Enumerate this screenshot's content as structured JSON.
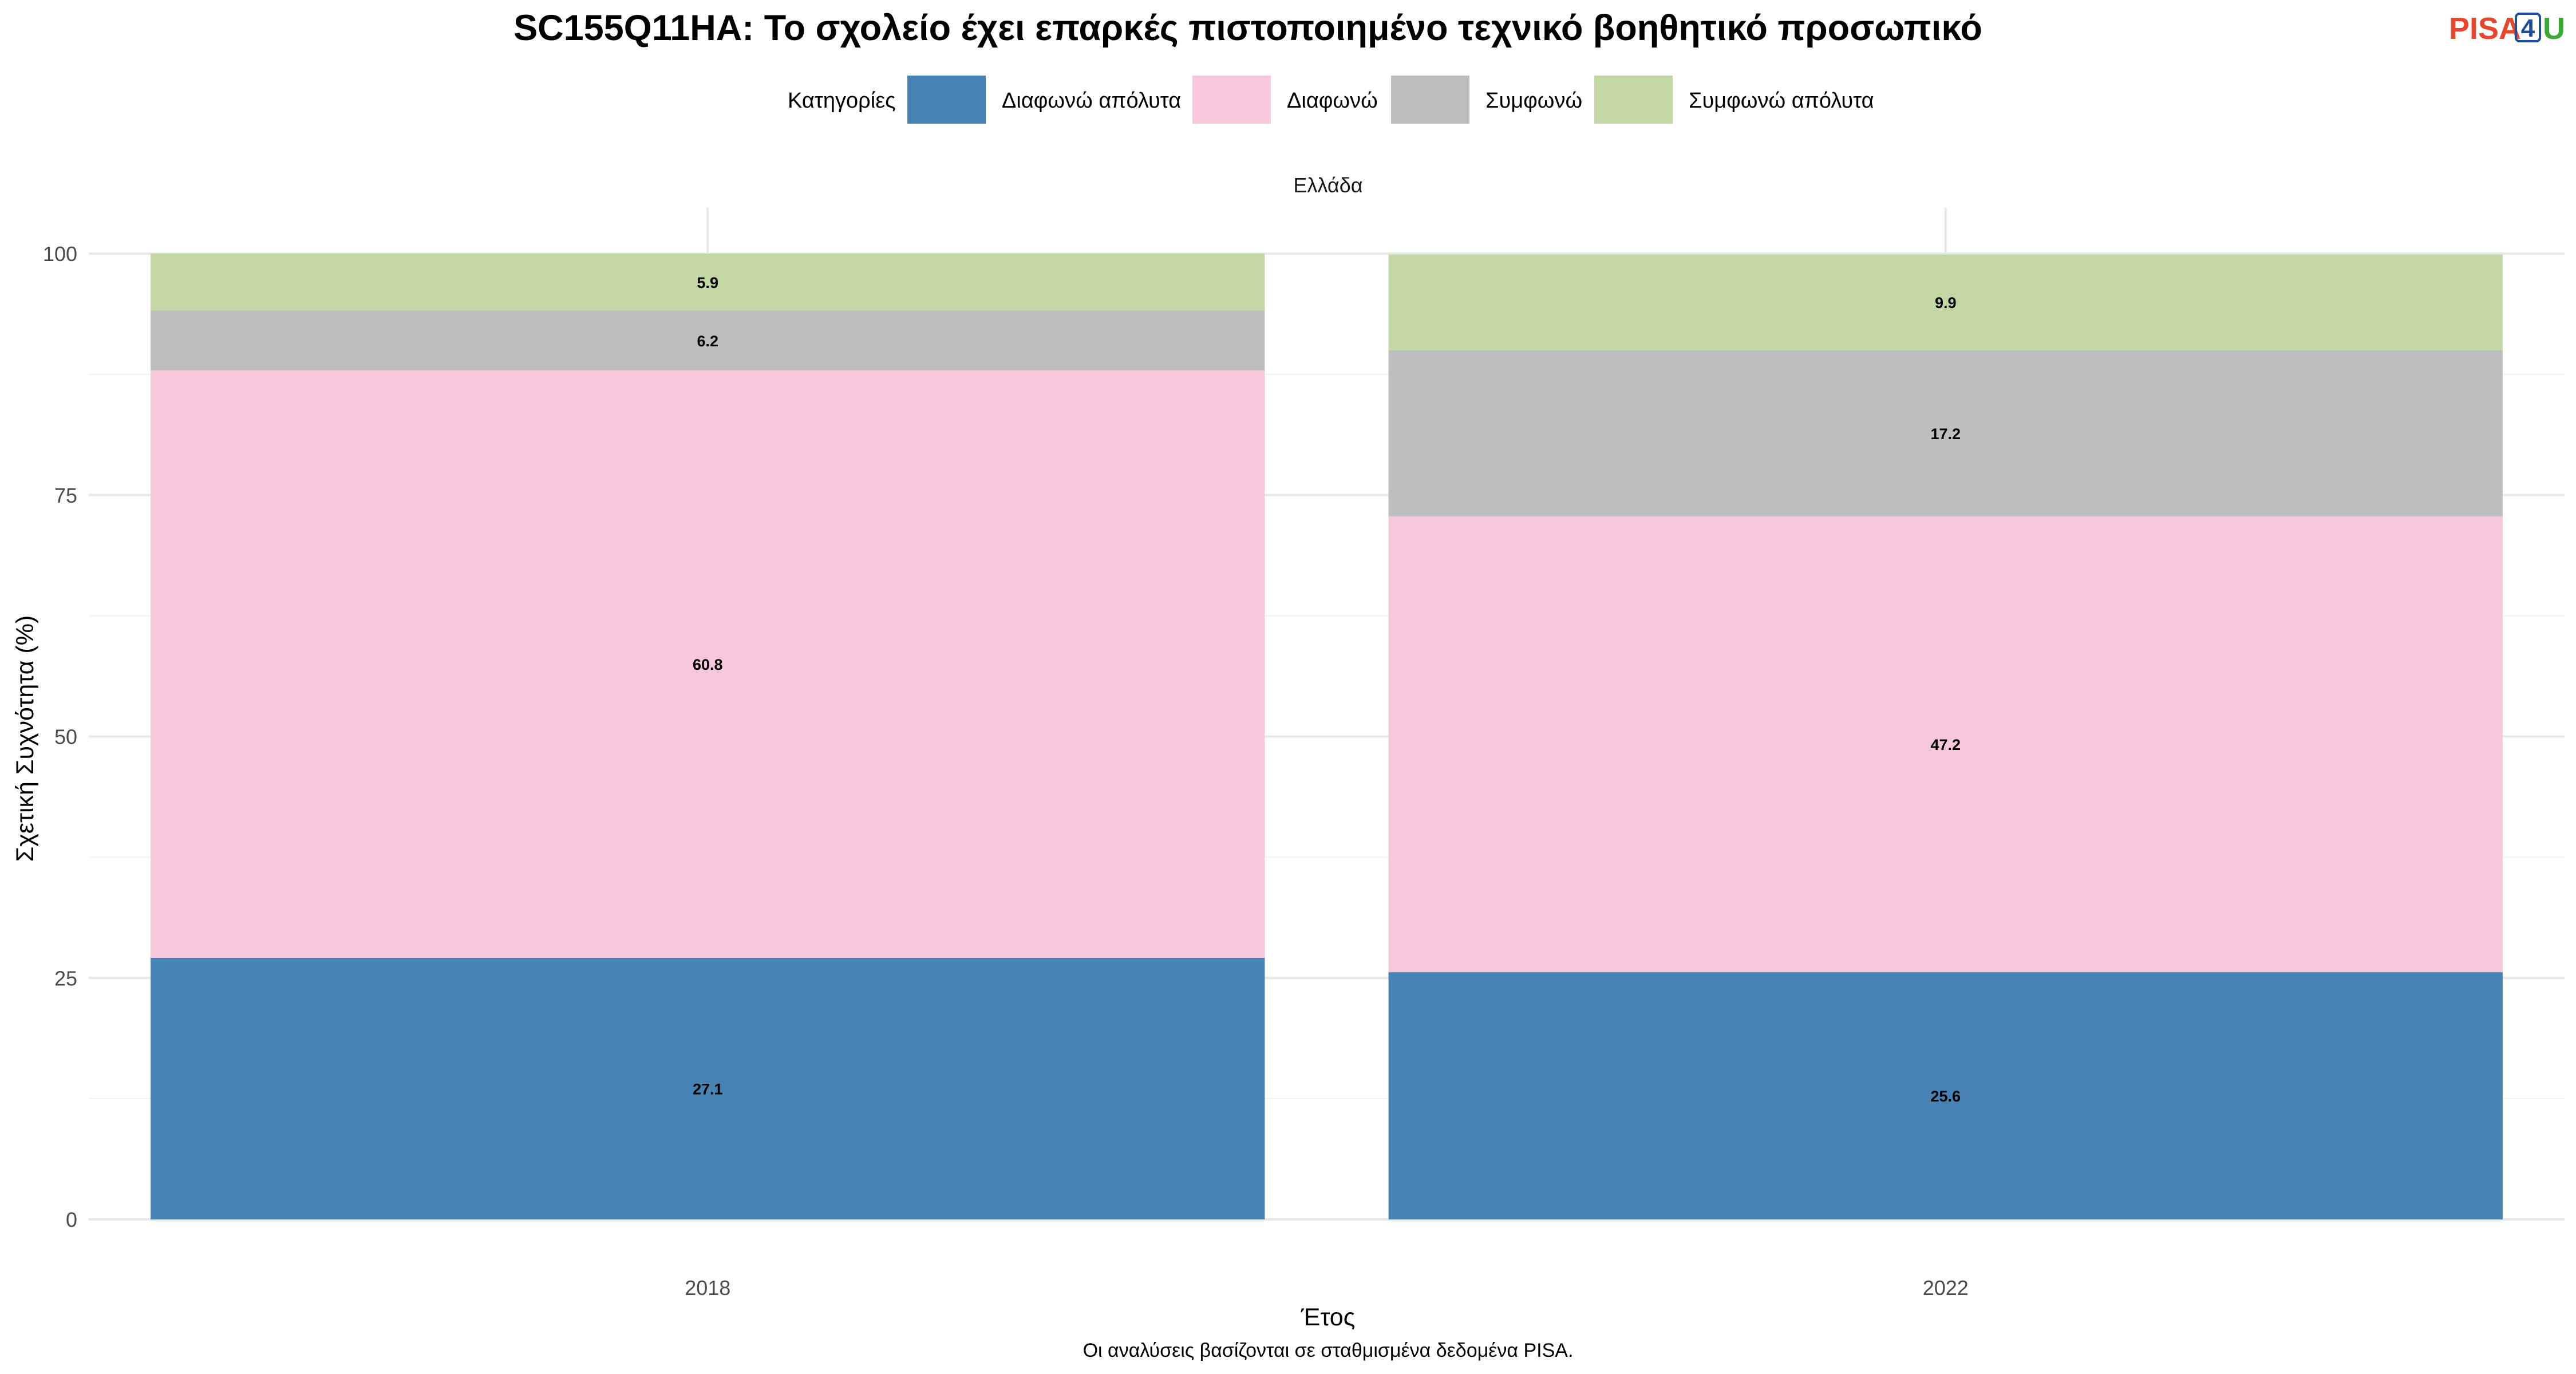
{
  "chart_data": {
    "type": "bar",
    "stacked": true,
    "title": "SC155Q11HA: Το σχολείο έχει επαρκές πιστοποιημένο τεχνικό βοηθητικό προσωπικό",
    "facet": "Ελλάδα",
    "xlabel": "Έτος",
    "ylabel": "Σχετική Συχνότητα (%)",
    "caption": "Οι αναλύσεις βασίζονται σε σταθμισμένα δεδομένα PISA.",
    "legend_title": "Κατηγορίες",
    "legend_position": "top",
    "grid": true,
    "ylim": [
      0,
      100
    ],
    "y_ticks": [
      "0",
      "25",
      "50",
      "75",
      "100"
    ],
    "categories": [
      "2018",
      "2022"
    ],
    "series": [
      {
        "name": "Διαφωνώ απόλυτα",
        "color": "#4682B4",
        "values": [
          27.1,
          25.6
        ]
      },
      {
        "name": "Διαφωνώ",
        "color": "#F7C7DB",
        "values": [
          60.8,
          47.2
        ]
      },
      {
        "name": "Συμφωνώ",
        "color": "#BEBEBE",
        "values": [
          6.2,
          17.2
        ]
      },
      {
        "name": "Συμφωνώ απόλυτα",
        "color": "#C3D7A4",
        "values": [
          5.9,
          9.9
        ]
      }
    ]
  },
  "logo": {
    "pisa": "PISA",
    "four": "4",
    "u": "U"
  }
}
